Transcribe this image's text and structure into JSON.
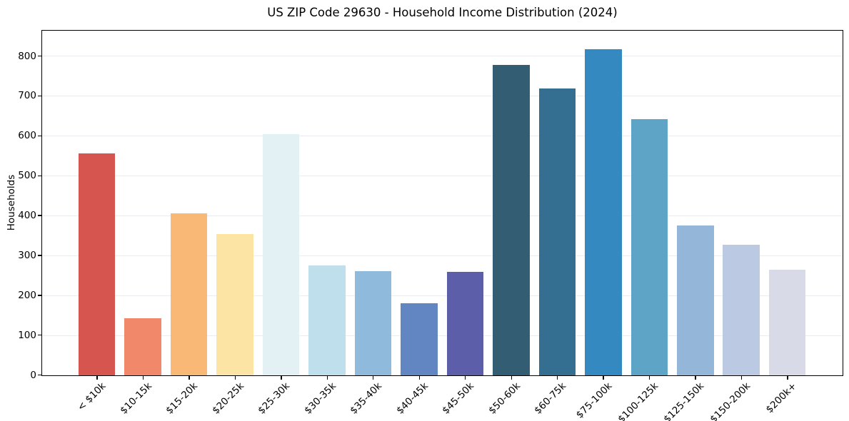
{
  "chart_data": {
    "type": "bar",
    "title": "US ZIP Code 29630 - Household Income Distribution (2024)",
    "xlabel": "",
    "ylabel": "Households",
    "categories": [
      "< $10k",
      "$10-15k",
      "$15-20k",
      "$20-25k",
      "$25-30k",
      "$30-35k",
      "$35-40k",
      "$40-45k",
      "$45-50k",
      "$50-60k",
      "$60-75k",
      "$75-100k",
      "$100-125k",
      "$125-150k",
      "$150-200k",
      "$200k+"
    ],
    "values": [
      556,
      144,
      406,
      355,
      605,
      276,
      261,
      181,
      260,
      778,
      719,
      818,
      643,
      375,
      328,
      264
    ],
    "colors": [
      "#d6564f",
      "#f2886a",
      "#fab877",
      "#fce4a4",
      "#e3f1f4",
      "#bfdfec",
      "#8fbadc",
      "#6286c1",
      "#5c5ea9",
      "#335d73",
      "#346f91",
      "#3389c0",
      "#5ea4c7",
      "#94b6d9",
      "#bbc9e2",
      "#d8dae8"
    ],
    "ylim": [
      0,
      863
    ],
    "yticks": [
      0,
      100,
      200,
      300,
      400,
      500,
      600,
      700,
      800
    ],
    "xtick_rotation": 45,
    "grid": "horizontal-only",
    "legend": "none",
    "background": "#ffffff"
  }
}
